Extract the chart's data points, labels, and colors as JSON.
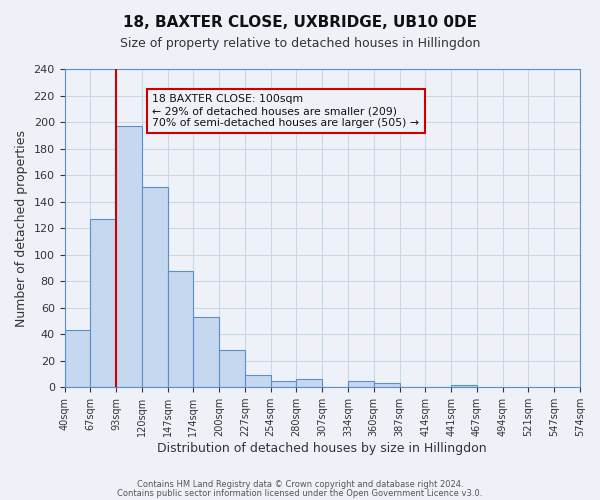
{
  "title": "18, BAXTER CLOSE, UXBRIDGE, UB10 0DE",
  "subtitle": "Size of property relative to detached houses in Hillingdon",
  "xlabel": "Distribution of detached houses by size in Hillingdon",
  "ylabel": "Number of detached properties",
  "bar_values": [
    43,
    127,
    197,
    151,
    88,
    53,
    28,
    9,
    5,
    6,
    0,
    5,
    3,
    0,
    0,
    2
  ],
  "bin_labels": [
    "40sqm",
    "67sqm",
    "93sqm",
    "120sqm",
    "147sqm",
    "174sqm",
    "200sqm",
    "227sqm",
    "254sqm",
    "280sqm",
    "307sqm",
    "334sqm",
    "360sqm",
    "387sqm",
    "414sqm",
    "441sqm",
    "467sqm",
    "494sqm",
    "521sqm",
    "547sqm",
    "574sqm"
  ],
  "bar_color": "#c5d8f0",
  "bar_edge_color": "#5b8fc9",
  "grid_color": "#c8d8e8",
  "background_color": "#eef2f8",
  "vline_x": 2,
  "vline_color": "#cc0000",
  "ylim": [
    0,
    240
  ],
  "yticks": [
    0,
    20,
    40,
    60,
    80,
    100,
    120,
    140,
    160,
    180,
    200,
    220,
    240
  ],
  "annotation_title": "18 BAXTER CLOSE: 100sqm",
  "annotation_line1": "← 29% of detached houses are smaller (209)",
  "annotation_line2": "70% of semi-detached houses are larger (505) →",
  "footer1": "Contains HM Land Registry data © Crown copyright and database right 2024.",
  "footer2": "Contains public sector information licensed under the Open Government Licence v3.0."
}
